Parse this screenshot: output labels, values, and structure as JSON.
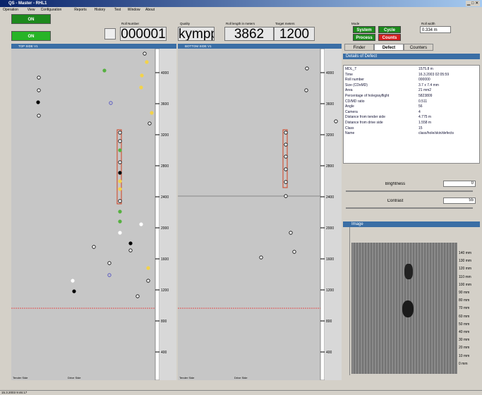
{
  "window": {
    "title": "QS - Master - RHL1",
    "menu": [
      "Operation",
      "View",
      "Configuration",
      "Reports",
      "History",
      "Test",
      "Window",
      "About"
    ]
  },
  "toolbar": {
    "status_buttons": [
      "ON",
      "ON"
    ],
    "field_labels": [
      "Roll Number",
      "Quality",
      "Roll length in meters",
      "Target meters"
    ],
    "roll_number": "000001",
    "quality": "kymppi",
    "roll_length": "3862",
    "target": "1200",
    "mode_label": "Mode",
    "mode_buttons": [
      "System",
      "Cycle",
      "Process",
      "Counts"
    ],
    "width_label": "Roll width",
    "width": "0.334 m"
  },
  "panels": [
    {
      "title": "TOP SIDE V1",
      "ticks": [
        "4000",
        "3600",
        "3200",
        "2800",
        "2400",
        "2000",
        "1600",
        "1200",
        "800",
        "400"
      ],
      "footer": [
        "Tender Side",
        "Drive Side"
      ]
    },
    {
      "title": "BOTTOM SIDE V1",
      "ticks": [
        "4000",
        "3600",
        "3200",
        "2800",
        "2400",
        "2000",
        "1600",
        "1200",
        "800",
        "400"
      ],
      "footer": [
        "Tender Side",
        "Drive Side"
      ]
    }
  ],
  "tabs": [
    "Finder",
    "Defect",
    "Counters"
  ],
  "details": {
    "title": "Details of Defect",
    "rows": [
      [
        "MDL_T",
        "1575.8 m"
      ],
      [
        "Time",
        "16.3.2003 02:05:59"
      ],
      [
        "Roll number",
        "000000"
      ],
      [
        "Size (CDxMD)",
        "3.7 x 7.4 mm"
      ],
      [
        "Area",
        "21 mm2"
      ],
      [
        "Percentage of holegrayflight",
        "5823809"
      ],
      [
        "CD/MD ratio",
        "0.511"
      ],
      [
        "Angle",
        "56"
      ],
      [
        "Camera",
        "4"
      ],
      [
        "Distance from tender side",
        "4.775 m"
      ],
      [
        "Distance from drive side",
        "1.558 m"
      ],
      [
        "Class",
        "15"
      ],
      [
        "Name",
        "class/hole/skin/defects"
      ]
    ]
  },
  "sliders": [
    {
      "label": "Brightness",
      "value": "0"
    },
    {
      "label": "Contrast",
      "value": "55"
    }
  ],
  "image": {
    "title": "Image",
    "scale": [
      "140 mm",
      "130 mm",
      "120 mm",
      "110 mm",
      "100 mm",
      "90 mm",
      "80 mm",
      "70 mm",
      "60 mm",
      "50 mm",
      "40 mm",
      "30 mm",
      "20 mm",
      "10 mm",
      "0 mm"
    ]
  },
  "statusbar": "15.3.2003 9:46:17"
}
